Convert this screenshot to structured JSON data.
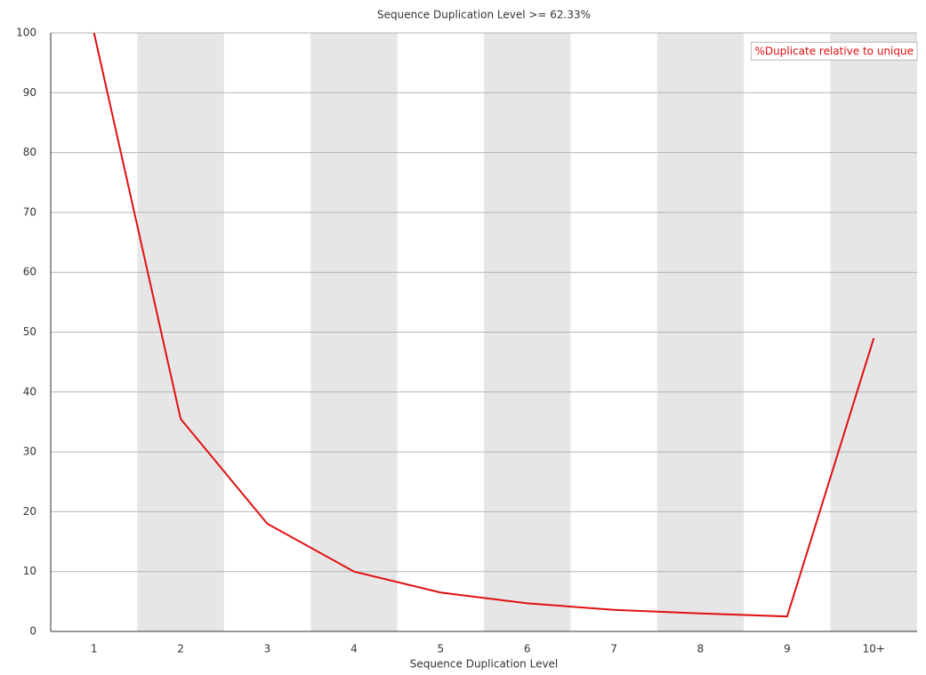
{
  "chart_data": {
    "type": "line",
    "title": "Sequence Duplication Level >= 62.33%",
    "x_label": "Sequence Duplication Level",
    "categories": [
      "1",
      "2",
      "3",
      "4",
      "5",
      "6",
      "7",
      "8",
      "9",
      "10+"
    ],
    "series": [
      {
        "name": "%Duplicate relative to unique",
        "color": "#e01010",
        "values": [
          100,
          35.5,
          18,
          10,
          6.5,
          4.7,
          3.6,
          3,
          2.5,
          49
        ]
      }
    ],
    "ylim": [
      0,
      100
    ],
    "yticks": [
      0,
      10,
      20,
      30,
      40,
      50,
      60,
      70,
      80,
      90,
      100
    ],
    "grid": true,
    "legend": "upper right",
    "band_color": "#e6e6e6"
  }
}
